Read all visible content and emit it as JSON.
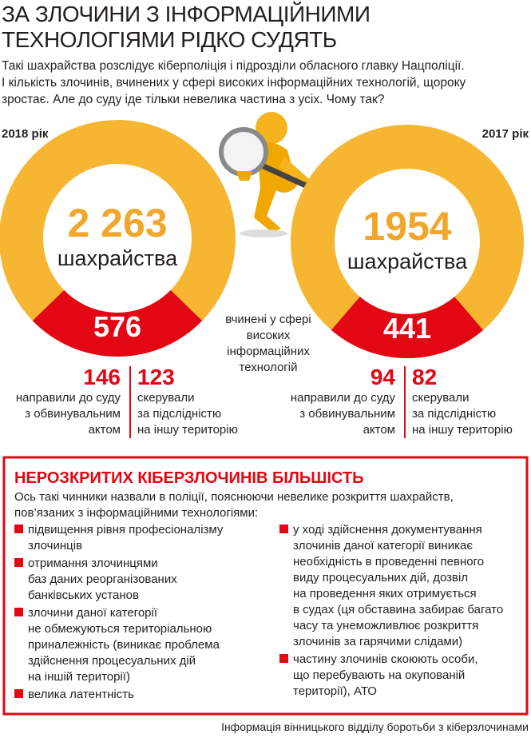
{
  "header": {
    "title_lines": [
      "ЗА ЗЛОЧИНИ З ІНФОРМАЦІЙНИМИ",
      "ТЕХНОЛОГІЯМИ РІДКО СУДЯТЬ"
    ],
    "lead_lines": [
      "Такі шахрайства розслідує кіберполіція і підрозділи обласного главку Нацполіції.",
      "І кількість злочинів, вчинених у сфері високих інформаційних технологій, щороку",
      "зростає. Але до суду іде тільки невелика частина з усіх. Чому так?"
    ]
  },
  "years": [
    {
      "label": "2018 рік",
      "total": {
        "value": 2263,
        "label": "2 263"
      },
      "total_caption": "шахрайства",
      "high_tech": 576,
      "to_court": 146,
      "to_court_lines": [
        "направили до суду",
        "з обвинувальним",
        "актом"
      ],
      "transferred": 123,
      "transferred_lines": [
        "скерували",
        "за підслідністю",
        "на іншу територію"
      ]
    },
    {
      "label": "2017 рік",
      "total": 1954,
      "total_caption": "шахрайства",
      "high_tech": 441,
      "to_court": 94,
      "to_court_lines": [
        "направили до суду",
        "з обвинувальним",
        "актом"
      ],
      "transferred": 82,
      "transferred_lines": [
        "скерували",
        "за підслідністю",
        "на іншу територію"
      ]
    }
  ],
  "center_note_lines": [
    "вчинені у сфері",
    "високих",
    "інформаційних",
    "технологій"
  ],
  "box": {
    "title": "НЕРОЗКРИТИХ КІБЕРЗЛОЧИНІВ БІЛЬШІСТЬ",
    "intro_lines": [
      "Ось такі чинники назвали в поліції, пояснюючи невелике розкриття шахрайств,",
      "пов’язаних з інформаційними технологіями:"
    ],
    "columns": [
      [
        {
          "lines": [
            "підвищення рівня професіоналізму",
            "злочинців"
          ]
        },
        {
          "lines": [
            "отримання злочинцями",
            "баз даних реорганізованих",
            "банківських установ"
          ]
        },
        {
          "lines": [
            "злочини даної категорії",
            "не обмежуються територіальною",
            "приналежність (виникає проблема",
            "здійснення процесуальних дій",
            "на іншій території)"
          ]
        },
        {
          "lines": [
            "велика латентність"
          ]
        }
      ],
      [
        {
          "lines": [
            "у ході здійснення документування",
            "злочинів даної категорії виникає",
            "необхідність в проведенні певного",
            "виду процесуальних дій, дозвіл",
            "на проведення яких отримується",
            "в судах (ця обставина забирає багато",
            "часу та унеможливлює розкриття",
            "злочинів за гарячими слідами)"
          ]
        },
        {
          "lines": [
            "частину злочинів скоюють особи,",
            "що перебувають на окупованій",
            "території), АТО"
          ]
        }
      ]
    ]
  },
  "footer": "Інформація вінницького відділу боротьби з кіберзлочинами"
}
